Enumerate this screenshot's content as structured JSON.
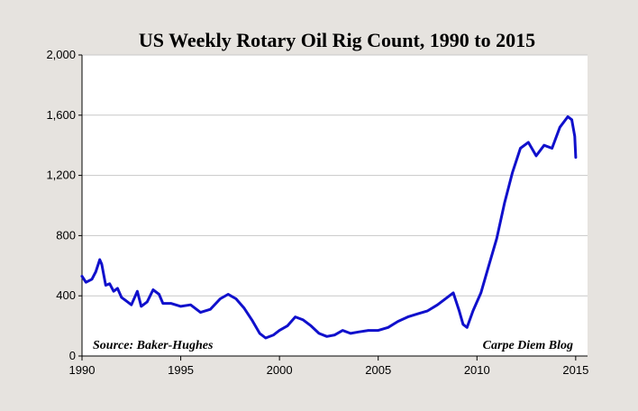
{
  "chart_data": {
    "type": "line",
    "title": "US Weekly Rotary Oil Rig Count, 1990 to 2015",
    "xlabel": "",
    "ylabel": "",
    "xlim": [
      1990,
      2015.6
    ],
    "ylim": [
      0,
      2000
    ],
    "x_ticks": [
      1990,
      1995,
      2000,
      2005,
      2010,
      2015
    ],
    "y_ticks": [
      0,
      400,
      800,
      1200,
      1600,
      2000
    ],
    "x_tick_labels": [
      "1990",
      "1995",
      "2000",
      "2005",
      "2010",
      "2015"
    ],
    "y_tick_labels": [
      "0",
      "400",
      "800",
      "1,200",
      "1,600",
      "2,000"
    ],
    "grid": "horizontal",
    "series": [
      {
        "name": "",
        "color": "#1010cc",
        "x": [
          1990.0,
          1990.2,
          1990.5,
          1990.7,
          1990.9,
          1991.0,
          1991.2,
          1991.4,
          1991.6,
          1991.8,
          1992.0,
          1992.2,
          1992.5,
          1992.8,
          1993.0,
          1993.3,
          1993.6,
          1993.9,
          1994.1,
          1994.5,
          1995.0,
          1995.5,
          1996.0,
          1996.5,
          1997.0,
          1997.4,
          1997.8,
          1998.2,
          1998.6,
          1999.0,
          1999.3,
          1999.7,
          2000.0,
          2000.4,
          2000.8,
          2001.2,
          2001.6,
          2002.0,
          2002.4,
          2002.8,
          2003.2,
          2003.6,
          2004.0,
          2004.5,
          2005.0,
          2005.5,
          2006.0,
          2006.5,
          2007.0,
          2007.5,
          2008.0,
          2008.5,
          2008.8,
          2009.1,
          2009.3,
          2009.5,
          2009.8,
          2010.2,
          2010.6,
          2011.0,
          2011.4,
          2011.8,
          2012.2,
          2012.6,
          2013.0,
          2013.4,
          2013.8,
          2014.2,
          2014.6,
          2014.8,
          2014.95,
          2015.0
        ],
        "y": [
          530,
          490,
          510,
          560,
          640,
          610,
          470,
          480,
          430,
          450,
          390,
          370,
          340,
          430,
          330,
          360,
          440,
          410,
          350,
          350,
          330,
          340,
          290,
          310,
          380,
          410,
          380,
          320,
          240,
          150,
          120,
          140,
          170,
          200,
          260,
          240,
          200,
          150,
          130,
          140,
          170,
          150,
          160,
          170,
          170,
          190,
          230,
          260,
          280,
          300,
          340,
          390,
          420,
          300,
          210,
          190,
          300,
          420,
          600,
          780,
          1020,
          1220,
          1380,
          1420,
          1330,
          1400,
          1380,
          1520,
          1590,
          1570,
          1460,
          1320
        ]
      }
    ],
    "annotations": [
      "Source: Baker-Hughes",
      "Carpe Diem Blog"
    ]
  }
}
